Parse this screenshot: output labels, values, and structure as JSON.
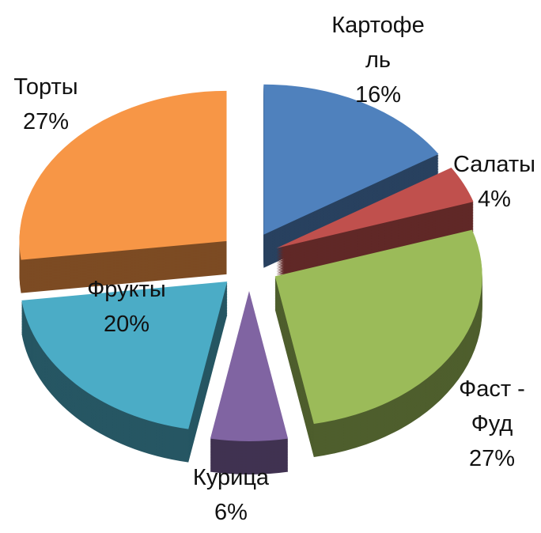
{
  "chart_data": {
    "type": "pie",
    "categories": [
      "Картофель",
      "Салаты",
      "Фаст - Фуд",
      "Курица",
      "Фрукты",
      "Торты"
    ],
    "values": [
      16,
      4,
      27,
      6,
      20,
      27
    ],
    "value_labels": [
      "16%",
      "4%",
      "27%",
      "6%",
      "20%",
      "27%"
    ],
    "colors": [
      "#4f81bd",
      "#c0504d",
      "#9bbb59",
      "#8064a2",
      "#4bacc6",
      "#f79646"
    ]
  }
}
